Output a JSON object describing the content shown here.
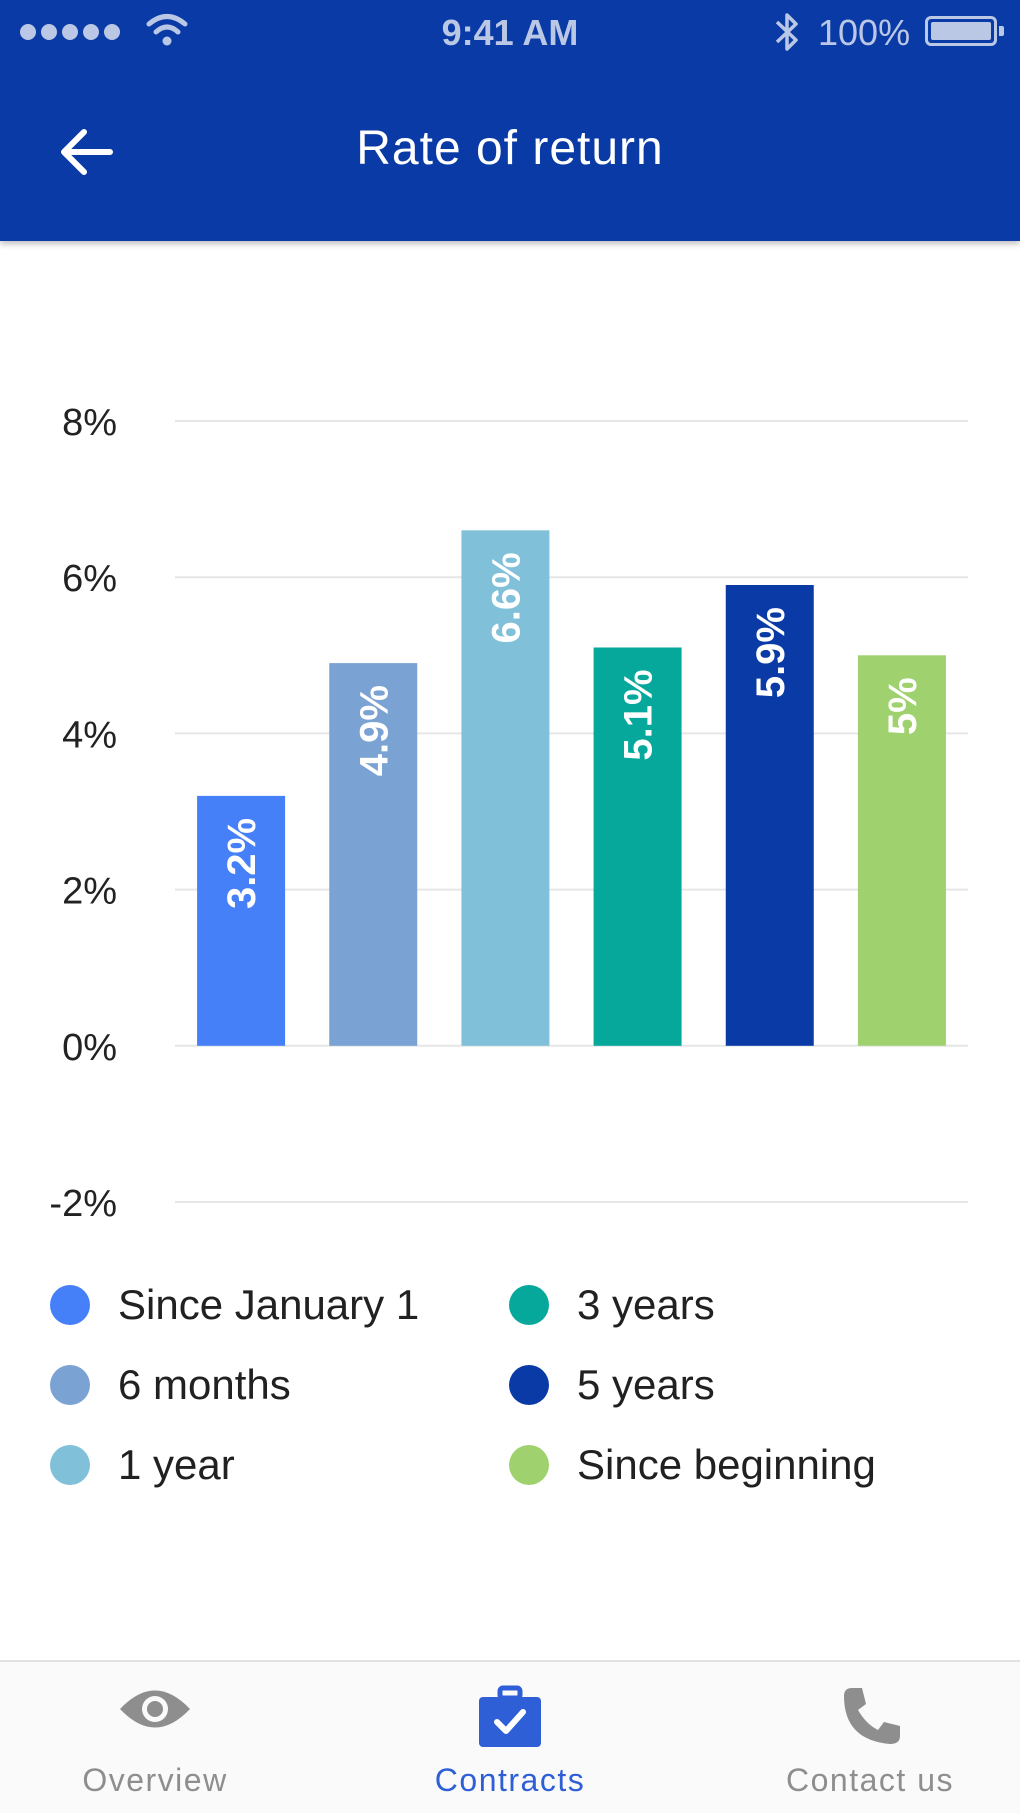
{
  "status_bar": {
    "time": "9:41 AM",
    "battery": "100%",
    "icons": [
      "signal-dots-icon",
      "wifi-icon",
      "bluetooth-icon",
      "battery-icon"
    ]
  },
  "header": {
    "title": "Rate of return",
    "back_icon": "arrow-left-icon"
  },
  "colors": {
    "header_bg": "#0a3aa5",
    "tab_active": "#2f5fd6",
    "tab_inactive": "#8e8e8e",
    "grid": "#e6e6e6"
  },
  "chart_data": {
    "type": "bar",
    "categories": [
      "Since January 1",
      "6 months",
      "1 year",
      "3 years",
      "5 years",
      "Since beginning"
    ],
    "values": [
      3.2,
      4.9,
      6.6,
      5.1,
      5.9,
      5
    ],
    "data_labels": [
      "3.2%",
      "4.9%",
      "6.6%",
      "5.1%",
      "5.9%",
      "5%"
    ],
    "colors": [
      "#4680f8",
      "#7aa3d3",
      "#80c1d9",
      "#06a89c",
      "#0a3aa5",
      "#9fd26e"
    ],
    "ylim": [
      -2,
      8
    ],
    "yticks": [
      8,
      6,
      4,
      2,
      0,
      -2
    ],
    "ytick_labels": [
      "8%",
      "6%",
      "4%",
      "2%",
      "0%",
      "-2%"
    ],
    "grid": true,
    "legend_placement": "bottom",
    "title": "",
    "xlabel": "",
    "ylabel": ""
  },
  "tabs": [
    {
      "label": "Overview",
      "icon": "eye-icon",
      "active": false
    },
    {
      "label": "Contracts",
      "icon": "briefcase-check-icon",
      "active": true
    },
    {
      "label": "Contact us",
      "icon": "phone-icon",
      "active": false
    }
  ]
}
